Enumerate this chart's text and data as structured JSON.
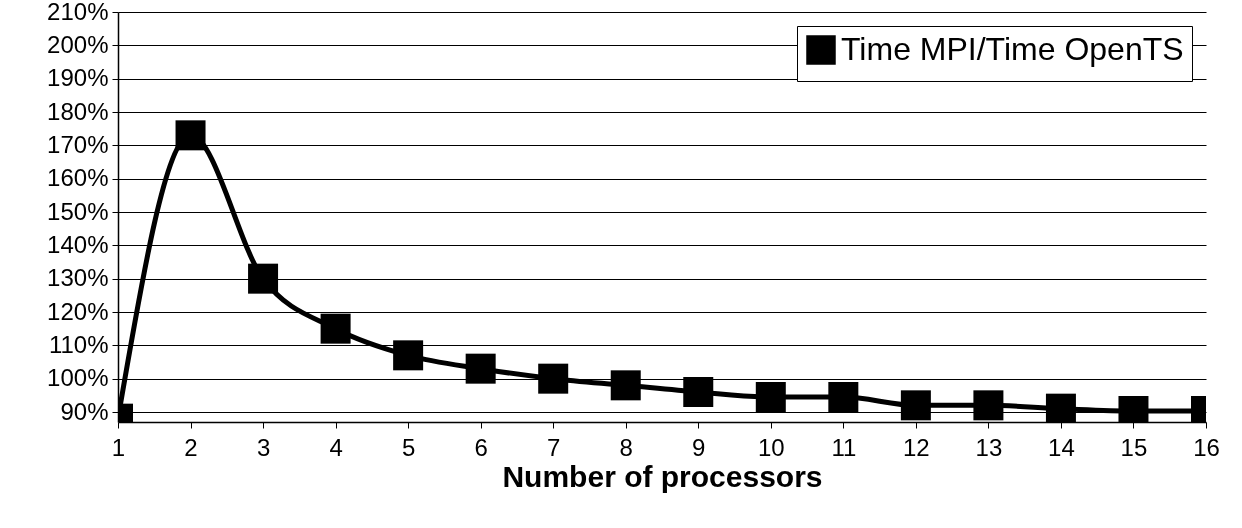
{
  "chart_data": {
    "type": "line",
    "xlabel": "Number of processors",
    "x": [
      1,
      2,
      3,
      4,
      5,
      6,
      7,
      8,
      9,
      10,
      11,
      12,
      13,
      14,
      15,
      16
    ],
    "series": [
      {
        "name": "Time MPI/Time OpenTS",
        "color": "#000000",
        "values": [
          88,
          173,
          130,
          115,
          107,
          103,
          100,
          98,
          96,
          94.5,
          94.5,
          92,
          92,
          91,
          90.3,
          90.3
        ]
      }
    ],
    "xlim": [
      1,
      16
    ],
    "xticks": [
      1,
      2,
      3,
      4,
      5,
      6,
      7,
      8,
      9,
      10,
      11,
      12,
      13,
      14,
      15,
      16
    ],
    "ylim": [
      87,
      210
    ],
    "yticks": [
      {
        "value": 90,
        "label": "90%"
      },
      {
        "value": 100,
        "label": "100%"
      },
      {
        "value": 110,
        "label": "110%"
      },
      {
        "value": 120,
        "label": "120%"
      },
      {
        "value": 130,
        "label": "130%"
      },
      {
        "value": 140,
        "label": "140%"
      },
      {
        "value": 150,
        "label": "150%"
      },
      {
        "value": 160,
        "label": "160%"
      },
      {
        "value": 170,
        "label": "170%"
      },
      {
        "value": 180,
        "label": "180%"
      },
      {
        "value": 190,
        "label": "190%"
      },
      {
        "value": 200,
        "label": "200%"
      },
      {
        "value": 210,
        "label": "210%"
      }
    ],
    "grid": "y",
    "legend": "top right",
    "marker": "square",
    "line_style": "solid"
  }
}
